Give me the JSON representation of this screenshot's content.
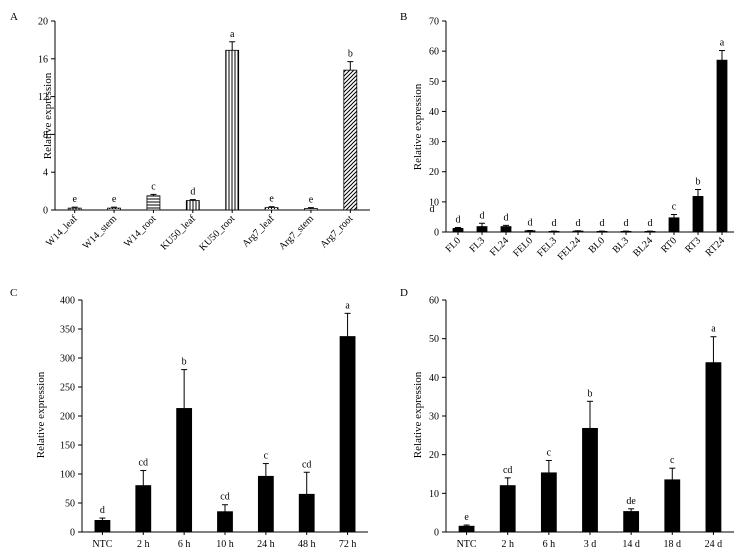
{
  "chart_data": [
    {
      "panel": "A",
      "type": "bar",
      "ylabel": "Relative expression",
      "ylim": [
        0,
        20
      ],
      "yticks": [
        0,
        4,
        8,
        12,
        16,
        20
      ],
      "categories": [
        "W14_leaf",
        "W14_stem",
        "W14_root",
        "KU50_leaf",
        "KU50_root",
        "Arg7_leaf",
        "Arg7_stem",
        "Arg7_root"
      ],
      "values": [
        0.2,
        0.2,
        1.5,
        1.0,
        16.9,
        0.25,
        0.15,
        14.8
      ],
      "errors": [
        0.1,
        0.1,
        0.15,
        0.1,
        0.9,
        0.1,
        0.1,
        0.9
      ],
      "letters": [
        "e",
        "e",
        "c",
        "d",
        "a",
        "e",
        "e",
        "b"
      ],
      "patterns": [
        "vlines",
        "dots",
        "hlines",
        "vlines",
        "vlines",
        "dots",
        "dots",
        "diag"
      ]
    },
    {
      "panel": "B",
      "type": "bar",
      "ylabel": "Relative expression",
      "ylim": [
        0,
        70
      ],
      "yticks": [
        0,
        10,
        20,
        30,
        40,
        50,
        60,
        70
      ],
      "categories": [
        "FL0",
        "FL3",
        "FL24",
        "FEL0",
        "FEL3",
        "FEL24",
        "BL0",
        "BL3",
        "BL24",
        "RT0",
        "RT3",
        "RT24"
      ],
      "values": [
        1.2,
        1.8,
        1.8,
        0.4,
        0.2,
        0.3,
        0.2,
        0.2,
        0.2,
        4.7,
        11.8,
        57.0
      ],
      "errors": [
        0.3,
        1.1,
        0.4,
        0.1,
        0.1,
        0.1,
        0.1,
        0.1,
        0.1,
        1.1,
        2.3,
        3.2
      ],
      "letters": [
        "d",
        "d",
        "d",
        "d",
        "d",
        "d",
        "d",
        "d",
        "d",
        "c",
        "b",
        "a"
      ],
      "extra_label": "d"
    },
    {
      "panel": "C",
      "type": "bar",
      "ylabel": "Relative expression",
      "ylim": [
        0,
        400
      ],
      "yticks": [
        0,
        50,
        100,
        150,
        200,
        250,
        300,
        350,
        400
      ],
      "categories": [
        "NTC",
        "2 h",
        "6 h",
        "10 h",
        "24 h",
        "48 h",
        "72 h"
      ],
      "values": [
        20,
        80,
        213,
        35,
        96,
        65,
        337
      ],
      "errors": [
        4,
        26,
        67,
        12,
        22,
        38,
        40
      ],
      "letters": [
        "d",
        "cd",
        "b",
        "cd",
        "c",
        "cd",
        "a"
      ]
    },
    {
      "panel": "D",
      "type": "bar",
      "ylabel": "Relative expression",
      "ylim": [
        0,
        60
      ],
      "yticks": [
        0,
        10,
        20,
        30,
        40,
        50,
        60
      ],
      "categories": [
        "NTC",
        "2 h",
        "6 h",
        "3 d",
        "14 d",
        "18 d",
        "24 d"
      ],
      "values": [
        1.5,
        12,
        15.3,
        26.8,
        5.3,
        13.5,
        43.8
      ],
      "errors": [
        0.3,
        2,
        3.2,
        7,
        0.7,
        3,
        6.7
      ],
      "letters": [
        "e",
        "cd",
        "c",
        "b",
        "de",
        "c",
        "a"
      ]
    }
  ]
}
